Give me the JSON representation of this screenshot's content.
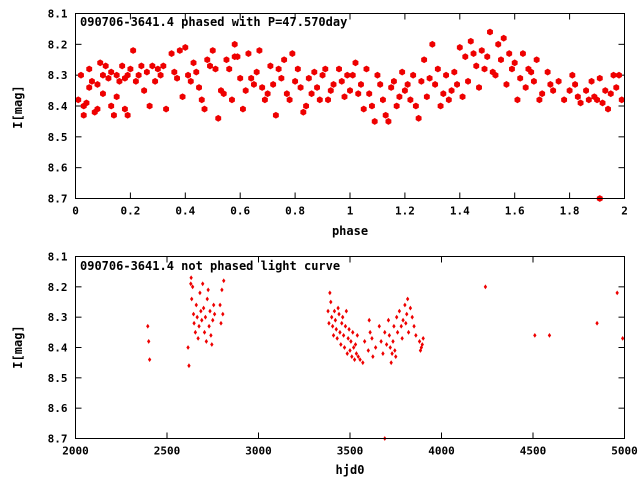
{
  "colors": {
    "points": "#ee0000",
    "axes": "#000000",
    "background": "#ffffff"
  },
  "chart_data": [
    {
      "type": "scatter",
      "title": "090706-3641.4 phased with P=47.570day",
      "xlabel": "phase",
      "ylabel": "I[mag]",
      "xlim": [
        0,
        2
      ],
      "ylim": [
        8.7,
        8.1
      ],
      "y_inverted": true,
      "xticks": [
        "0",
        "0.2",
        "0.4",
        "0.6",
        "0.8",
        "1",
        "1.2",
        "1.4",
        "1.6",
        "1.8",
        "2"
      ],
      "yticks": [
        "8.1",
        "8.2",
        "8.3",
        "8.4",
        "8.5",
        "8.6",
        "8.7"
      ],
      "grid": false,
      "marker": "filled-hexagon",
      "points": [
        [
          0.01,
          8.38
        ],
        [
          0.02,
          8.3
        ],
        [
          0.03,
          8.4
        ],
        [
          0.03,
          8.43
        ],
        [
          0.04,
          8.39
        ],
        [
          0.05,
          8.28
        ],
        [
          0.05,
          8.34
        ],
        [
          0.06,
          8.32
        ],
        [
          0.07,
          8.42
        ],
        [
          0.08,
          8.41
        ],
        [
          0.08,
          8.33
        ],
        [
          0.09,
          8.26
        ],
        [
          0.1,
          8.3
        ],
        [
          0.1,
          8.36
        ],
        [
          0.11,
          8.27
        ],
        [
          0.12,
          8.31
        ],
        [
          0.13,
          8.29
        ],
        [
          0.13,
          8.4
        ],
        [
          0.14,
          8.43
        ],
        [
          0.15,
          8.3
        ],
        [
          0.15,
          8.37
        ],
        [
          0.16,
          8.32
        ],
        [
          0.17,
          8.27
        ],
        [
          0.18,
          8.31
        ],
        [
          0.18,
          8.41
        ],
        [
          0.19,
          8.3
        ],
        [
          0.19,
          8.43
        ],
        [
          0.2,
          8.28
        ],
        [
          0.21,
          8.22
        ],
        [
          0.22,
          8.32
        ],
        [
          0.23,
          8.3
        ],
        [
          0.24,
          8.27
        ],
        [
          0.25,
          8.35
        ],
        [
          0.26,
          8.29
        ],
        [
          0.27,
          8.4
        ],
        [
          0.28,
          8.27
        ],
        [
          0.29,
          8.32
        ],
        [
          0.3,
          8.28
        ],
        [
          0.31,
          8.3
        ],
        [
          0.32,
          8.27
        ],
        [
          0.33,
          8.41
        ],
        [
          0.35,
          8.23
        ],
        [
          0.36,
          8.29
        ],
        [
          0.37,
          8.31
        ],
        [
          0.38,
          8.22
        ],
        [
          0.39,
          8.37
        ],
        [
          0.4,
          8.21
        ],
        [
          0.41,
          8.3
        ],
        [
          0.42,
          8.32
        ],
        [
          0.43,
          8.26
        ],
        [
          0.44,
          8.29
        ],
        [
          0.45,
          8.34
        ],
        [
          0.46,
          8.38
        ],
        [
          0.47,
          8.41
        ],
        [
          0.48,
          8.25
        ],
        [
          0.49,
          8.27
        ],
        [
          0.5,
          8.22
        ],
        [
          0.51,
          8.28
        ],
        [
          0.52,
          8.44
        ],
        [
          0.53,
          8.35
        ],
        [
          0.54,
          8.36
        ],
        [
          0.55,
          8.25
        ],
        [
          0.56,
          8.28
        ],
        [
          0.57,
          8.38
        ],
        [
          0.58,
          8.24
        ],
        [
          0.58,
          8.2
        ],
        [
          0.59,
          8.24
        ],
        [
          0.6,
          8.31
        ],
        [
          0.61,
          8.41
        ],
        [
          0.62,
          8.35
        ],
        [
          0.63,
          8.23
        ],
        [
          0.64,
          8.31
        ],
        [
          0.65,
          8.33
        ],
        [
          0.66,
          8.29
        ],
        [
          0.67,
          8.22
        ],
        [
          0.68,
          8.34
        ],
        [
          0.69,
          8.38
        ],
        [
          0.7,
          8.36
        ],
        [
          0.71,
          8.27
        ],
        [
          0.72,
          8.33
        ],
        [
          0.73,
          8.43
        ],
        [
          0.74,
          8.28
        ],
        [
          0.75,
          8.31
        ],
        [
          0.76,
          8.25
        ],
        [
          0.77,
          8.36
        ],
        [
          0.78,
          8.38
        ],
        [
          0.79,
          8.23
        ],
        [
          0.8,
          8.32
        ],
        [
          0.81,
          8.28
        ],
        [
          0.82,
          8.34
        ],
        [
          0.83,
          8.42
        ],
        [
          0.84,
          8.4
        ],
        [
          0.85,
          8.31
        ],
        [
          0.86,
          8.36
        ],
        [
          0.87,
          8.29
        ],
        [
          0.88,
          8.34
        ],
        [
          0.89,
          8.38
        ],
        [
          0.9,
          8.3
        ],
        [
          0.91,
          8.28
        ],
        [
          0.92,
          8.38
        ],
        [
          0.93,
          8.35
        ],
        [
          0.94,
          8.33
        ],
        [
          0.96,
          8.28
        ],
        [
          0.97,
          8.32
        ],
        [
          0.98,
          8.37
        ],
        [
          0.99,
          8.3
        ],
        [
          1.0,
          8.35
        ],
        [
          1.01,
          8.3
        ],
        [
          1.02,
          8.26
        ],
        [
          1.03,
          8.36
        ],
        [
          1.04,
          8.33
        ],
        [
          1.05,
          8.41
        ],
        [
          1.06,
          8.28
        ],
        [
          1.07,
          8.36
        ],
        [
          1.08,
          8.4
        ],
        [
          1.09,
          8.45
        ],
        [
          1.1,
          8.3
        ],
        [
          1.11,
          8.33
        ],
        [
          1.12,
          8.38
        ],
        [
          1.13,
          8.43
        ],
        [
          1.14,
          8.45
        ],
        [
          1.15,
          8.34
        ],
        [
          1.16,
          8.32
        ],
        [
          1.17,
          8.4
        ],
        [
          1.18,
          8.37
        ],
        [
          1.19,
          8.29
        ],
        [
          1.2,
          8.35
        ],
        [
          1.21,
          8.33
        ],
        [
          1.22,
          8.38
        ],
        [
          1.23,
          8.3
        ],
        [
          1.24,
          8.4
        ],
        [
          1.25,
          8.44
        ],
        [
          1.26,
          8.32
        ],
        [
          1.27,
          8.25
        ],
        [
          1.28,
          8.37
        ],
        [
          1.29,
          8.31
        ],
        [
          1.3,
          8.2
        ],
        [
          1.31,
          8.33
        ],
        [
          1.32,
          8.28
        ],
        [
          1.33,
          8.4
        ],
        [
          1.34,
          8.36
        ],
        [
          1.35,
          8.3
        ],
        [
          1.36,
          8.38
        ],
        [
          1.37,
          8.35
        ],
        [
          1.38,
          8.29
        ],
        [
          1.39,
          8.33
        ],
        [
          1.4,
          8.21
        ],
        [
          1.41,
          8.37
        ],
        [
          1.42,
          8.24
        ],
        [
          1.43,
          8.32
        ],
        [
          1.44,
          8.19
        ],
        [
          1.45,
          8.23
        ],
        [
          1.46,
          8.27
        ],
        [
          1.47,
          8.34
        ],
        [
          1.48,
          8.22
        ],
        [
          1.49,
          8.28
        ],
        [
          1.5,
          8.24
        ],
        [
          1.51,
          8.16
        ],
        [
          1.52,
          8.29
        ],
        [
          1.53,
          8.3
        ],
        [
          1.54,
          8.2
        ],
        [
          1.55,
          8.25
        ],
        [
          1.56,
          8.18
        ],
        [
          1.57,
          8.33
        ],
        [
          1.58,
          8.23
        ],
        [
          1.59,
          8.28
        ],
        [
          1.6,
          8.26
        ],
        [
          1.61,
          8.38
        ],
        [
          1.62,
          8.31
        ],
        [
          1.63,
          8.23
        ],
        [
          1.64,
          8.34
        ],
        [
          1.65,
          8.28
        ],
        [
          1.66,
          8.29
        ],
        [
          1.67,
          8.32
        ],
        [
          1.68,
          8.25
        ],
        [
          1.69,
          8.38
        ],
        [
          1.7,
          8.36
        ],
        [
          1.72,
          8.29
        ],
        [
          1.73,
          8.33
        ],
        [
          1.74,
          8.35
        ],
        [
          1.76,
          8.32
        ],
        [
          1.78,
          8.38
        ],
        [
          1.8,
          8.35
        ],
        [
          1.81,
          8.3
        ],
        [
          1.82,
          8.33
        ],
        [
          1.83,
          8.37
        ],
        [
          1.84,
          8.39
        ],
        [
          1.86,
          8.35
        ],
        [
          1.87,
          8.38
        ],
        [
          1.88,
          8.32
        ],
        [
          1.89,
          8.37
        ],
        [
          1.9,
          8.38
        ],
        [
          1.91,
          8.31
        ],
        [
          1.92,
          8.39
        ],
        [
          1.93,
          8.35
        ],
        [
          1.94,
          8.41
        ],
        [
          1.95,
          8.36
        ],
        [
          1.96,
          8.3
        ],
        [
          1.97,
          8.34
        ],
        [
          1.98,
          8.3
        ],
        [
          1.99,
          8.38
        ],
        [
          1.91,
          8.7
        ]
      ]
    },
    {
      "type": "scatter",
      "title": "090706-3641.4 not phased light curve",
      "xlabel": "hjd0",
      "ylabel": "I[mag]",
      "xlim": [
        2000,
        5000
      ],
      "ylim": [
        8.7,
        8.1
      ],
      "y_inverted": true,
      "xticks": [
        "2000",
        "2500",
        "3000",
        "3500",
        "4000",
        "4500",
        "5000"
      ],
      "yticks": [
        "8.1",
        "8.2",
        "8.3",
        "8.4",
        "8.5",
        "8.6",
        "8.7"
      ],
      "grid": false,
      "marker": "small-diamond",
      "points": [
        [
          2395,
          8.33
        ],
        [
          2400,
          8.38
        ],
        [
          2405,
          8.44
        ],
        [
          2615,
          8.4
        ],
        [
          2620,
          8.46
        ],
        [
          2630,
          8.19
        ],
        [
          2632,
          8.17
        ],
        [
          2635,
          8.24
        ],
        [
          2640,
          8.2
        ],
        [
          2645,
          8.29
        ],
        [
          2648,
          8.32
        ],
        [
          2655,
          8.35
        ],
        [
          2660,
          8.26
        ],
        [
          2665,
          8.3
        ],
        [
          2670,
          8.37
        ],
        [
          2675,
          8.33
        ],
        [
          2680,
          8.22
        ],
        [
          2685,
          8.28
        ],
        [
          2690,
          8.31
        ],
        [
          2695,
          8.19
        ],
        [
          2700,
          8.27
        ],
        [
          2705,
          8.35
        ],
        [
          2710,
          8.3
        ],
        [
          2715,
          8.38
        ],
        [
          2720,
          8.24
        ],
        [
          2725,
          8.21
        ],
        [
          2730,
          8.33
        ],
        [
          2735,
          8.28
        ],
        [
          2740,
          8.36
        ],
        [
          2745,
          8.39
        ],
        [
          2750,
          8.31
        ],
        [
          2755,
          8.26
        ],
        [
          2760,
          8.29
        ],
        [
          2790,
          8.26
        ],
        [
          2795,
          8.32
        ],
        [
          2800,
          8.21
        ],
        [
          2805,
          8.29
        ],
        [
          2810,
          8.18
        ],
        [
          3380,
          8.28
        ],
        [
          3385,
          8.32
        ],
        [
          3390,
          8.22
        ],
        [
          3395,
          8.25
        ],
        [
          3400,
          8.3
        ],
        [
          3405,
          8.33
        ],
        [
          3410,
          8.36
        ],
        [
          3415,
          8.28
        ],
        [
          3420,
          8.31
        ],
        [
          3425,
          8.34
        ],
        [
          3430,
          8.37
        ],
        [
          3435,
          8.27
        ],
        [
          3440,
          8.29
        ],
        [
          3445,
          8.35
        ],
        [
          3450,
          8.39
        ],
        [
          3455,
          8.32
        ],
        [
          3460,
          8.3
        ],
        [
          3465,
          8.36
        ],
        [
          3470,
          8.4
        ],
        [
          3475,
          8.33
        ],
        [
          3480,
          8.28
        ],
        [
          3485,
          8.42
        ],
        [
          3490,
          8.37
        ],
        [
          3495,
          8.34
        ],
        [
          3500,
          8.41
        ],
        [
          3505,
          8.38
        ],
        [
          3510,
          8.43
        ],
        [
          3515,
          8.35
        ],
        [
          3520,
          8.4
        ],
        [
          3525,
          8.44
        ],
        [
          3530,
          8.39
        ],
        [
          3535,
          8.42
        ],
        [
          3540,
          8.36
        ],
        [
          3545,
          8.43
        ],
        [
          3555,
          8.44
        ],
        [
          3570,
          8.45
        ],
        [
          3580,
          8.38
        ],
        [
          3600,
          8.41
        ],
        [
          3605,
          8.31
        ],
        [
          3610,
          8.35
        ],
        [
          3620,
          8.37
        ],
        [
          3625,
          8.43
        ],
        [
          3640,
          8.4
        ],
        [
          3660,
          8.33
        ],
        [
          3670,
          8.38
        ],
        [
          3680,
          8.42
        ],
        [
          3690,
          8.35
        ],
        [
          3700,
          8.39
        ],
        [
          3710,
          8.31
        ],
        [
          3715,
          8.36
        ],
        [
          3720,
          8.4
        ],
        [
          3725,
          8.45
        ],
        [
          3730,
          8.42
        ],
        [
          3735,
          8.38
        ],
        [
          3740,
          8.33
        ],
        [
          3745,
          8.41
        ],
        [
          3750,
          8.43
        ],
        [
          3755,
          8.3
        ],
        [
          3760,
          8.35
        ],
        [
          3770,
          8.28
        ],
        [
          3780,
          8.33
        ],
        [
          3785,
          8.37
        ],
        [
          3790,
          8.31
        ],
        [
          3800,
          8.26
        ],
        [
          3805,
          8.32
        ],
        [
          3810,
          8.29
        ],
        [
          3815,
          8.24
        ],
        [
          3820,
          8.35
        ],
        [
          3830,
          8.27
        ],
        [
          3840,
          8.3
        ],
        [
          3850,
          8.33
        ],
        [
          3860,
          8.36
        ],
        [
          3880,
          8.38
        ],
        [
          3885,
          8.41
        ],
        [
          3890,
          8.4
        ],
        [
          3895,
          8.39
        ],
        [
          3900,
          8.37
        ],
        [
          3690,
          8.7
        ],
        [
          4240,
          8.2
        ],
        [
          4510,
          8.36
        ],
        [
          4590,
          8.36
        ],
        [
          4850,
          8.32
        ],
        [
          4960,
          8.22
        ],
        [
          4990,
          8.37
        ]
      ]
    }
  ]
}
